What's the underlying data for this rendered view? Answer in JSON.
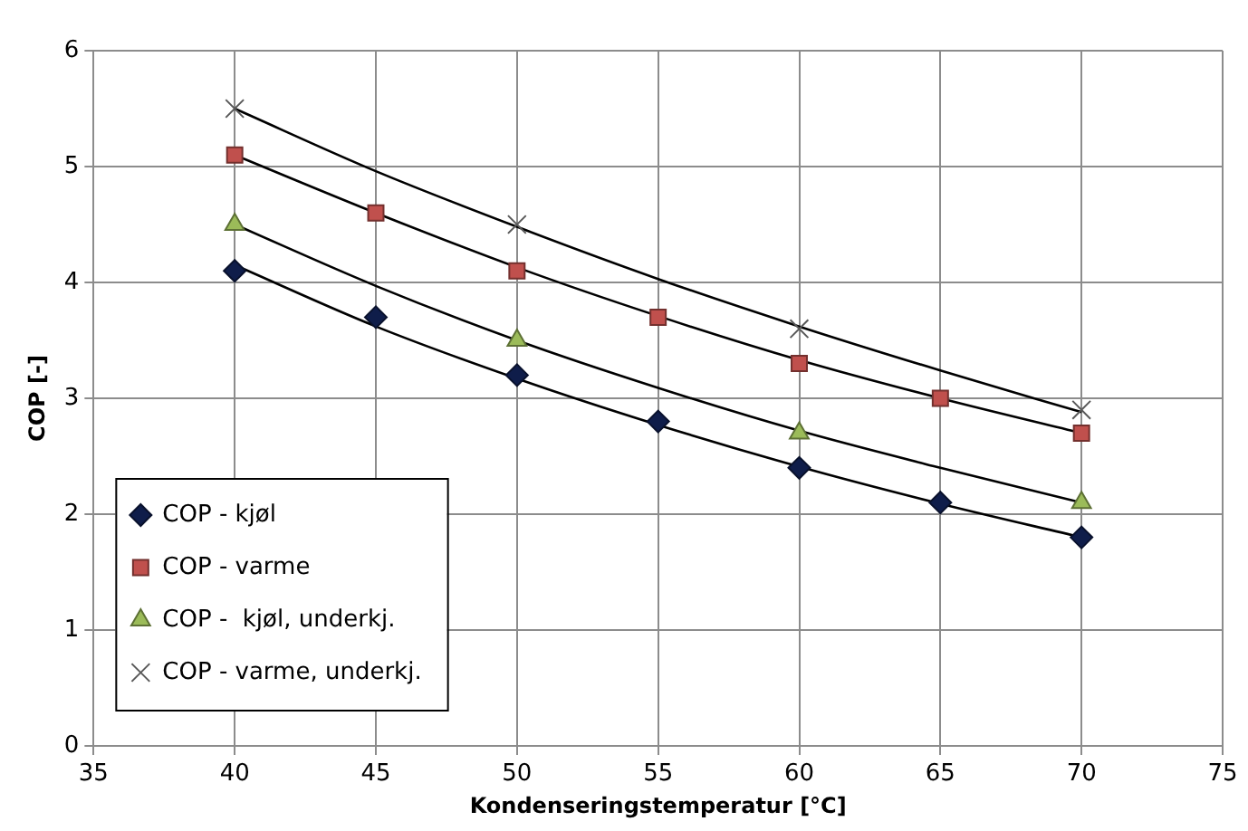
{
  "chart_data": {
    "type": "scatter",
    "xlabel": "Kondenseringstemperatur [°C]",
    "ylabel": "COP [-]",
    "xlim": [
      35,
      75
    ],
    "xticks": [
      35,
      40,
      45,
      50,
      55,
      60,
      65,
      70,
      75
    ],
    "ylim": [
      0,
      6
    ],
    "yticks": [
      0,
      1,
      2,
      3,
      4,
      5,
      6
    ],
    "grid": true,
    "legend": "bottom left",
    "series": [
      {
        "name": "COP - kjøl",
        "color": "#0f1d4a",
        "marker": "diamond",
        "x": [
          40,
          45,
          50,
          55,
          60,
          65,
          70
        ],
        "values": [
          4.1,
          3.7,
          3.2,
          2.8,
          2.4,
          2.1,
          1.8
        ]
      },
      {
        "name": "COP - varme",
        "color": "#c0504d",
        "marker": "square",
        "x": [
          40,
          45,
          50,
          55,
          60,
          65,
          70
        ],
        "values": [
          5.1,
          4.6,
          4.1,
          3.7,
          3.3,
          3.0,
          2.7
        ]
      },
      {
        "name": "COP -  kjøl, underkj.",
        "color": "#9bbb59",
        "marker": "triangle",
        "x": [
          40,
          50,
          60,
          70
        ],
        "values": [
          4.5,
          3.5,
          2.7,
          2.1
        ]
      },
      {
        "name": "COP - varme, underkj.",
        "color": "#595959",
        "marker": "cross",
        "x": [
          40,
          50,
          60,
          70
        ],
        "values": [
          5.5,
          4.5,
          3.6,
          2.9
        ]
      },
      {
        "type": "line",
        "color": "#000000",
        "marker": "none",
        "x": [
          40,
          45,
          50,
          55,
          60,
          65,
          70
        ],
        "values": [
          4.15,
          3.62,
          3.17,
          2.77,
          2.41,
          2.09,
          1.8
        ]
      },
      {
        "type": "line",
        "color": "#000000",
        "marker": "none",
        "x": [
          40,
          45,
          50,
          55,
          60,
          65,
          70
        ],
        "values": [
          5.1,
          4.6,
          4.13,
          3.71,
          3.33,
          3.0,
          2.7
        ]
      },
      {
        "type": "line",
        "color": "#000000",
        "marker": "none",
        "x": [
          40,
          45,
          50,
          55,
          60,
          65,
          70
        ],
        "values": [
          4.5,
          3.97,
          3.5,
          3.09,
          2.72,
          2.4,
          2.1
        ]
      },
      {
        "type": "line",
        "color": "#000000",
        "marker": "none",
        "x": [
          40,
          45,
          50,
          55,
          60,
          65,
          70
        ],
        "values": [
          5.5,
          4.96,
          4.48,
          4.03,
          3.62,
          3.24,
          2.88
        ]
      }
    ]
  }
}
